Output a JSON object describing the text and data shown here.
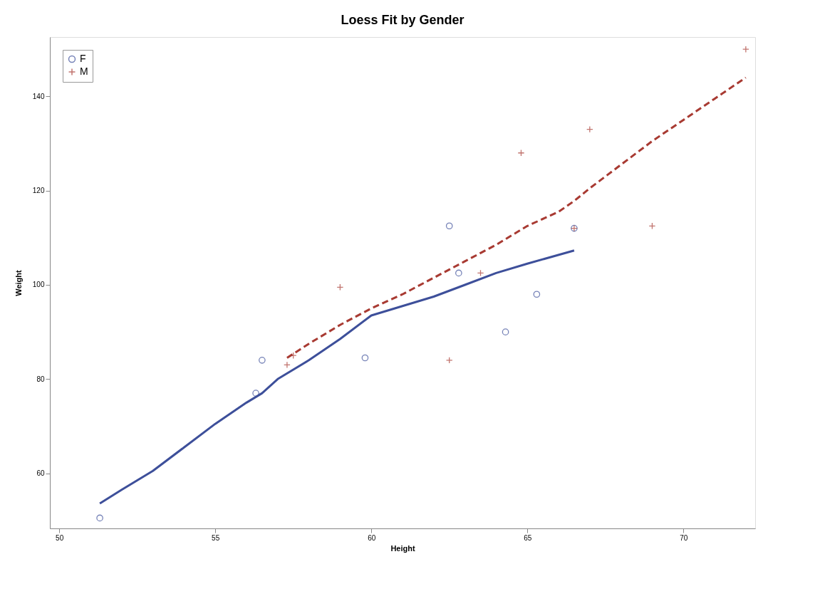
{
  "chart_data": {
    "type": "scatter",
    "title": "Loess Fit by Gender",
    "xlabel": "Height",
    "ylabel": "Weight",
    "xlim": [
      49.7,
      72.3
    ],
    "xticks": [
      50,
      55,
      60,
      65,
      70
    ],
    "ylim": [
      48.3,
      152.6
    ],
    "yticks": [
      60,
      80,
      100,
      120,
      140
    ],
    "grid": false,
    "legend": "top left",
    "series": [
      {
        "name": "F",
        "marker": "circle",
        "color": "#3d4f9a",
        "x": [
          56.5,
          65.3,
          62.8,
          59.8,
          62.5,
          51.3,
          64.3,
          56.3,
          66.5
        ],
        "values": [
          84,
          98,
          102.5,
          84.5,
          112.5,
          50.5,
          90,
          77,
          112
        ]
      },
      {
        "name": "M",
        "marker": "cross",
        "color": "#a83a32",
        "x": [
          69,
          63.5,
          57.3,
          62.5,
          59,
          72,
          64.8,
          67,
          57.5,
          66.5
        ],
        "values": [
          112.5,
          102.5,
          83,
          84,
          99.5,
          150,
          128,
          133,
          85,
          112
        ]
      },
      {
        "type": "line",
        "line_style": "solid",
        "color": "#3d4f9a",
        "x": [
          51.3,
          52,
          53,
          54,
          55,
          56,
          56.5,
          57,
          58,
          59,
          60,
          61,
          62,
          63,
          64,
          65,
          66.5
        ],
        "values": [
          53.6,
          56.5,
          60.5,
          65.5,
          70.5,
          75,
          77,
          80,
          84,
          88.5,
          93.5,
          95.5,
          97.5,
          100,
          102.5,
          104.5,
          107.3
        ]
      },
      {
        "type": "line",
        "line_style": "dashed",
        "color": "#a83a32",
        "x": [
          57.3,
          58,
          59,
          60,
          61,
          62,
          63,
          64,
          65,
          66,
          66.5,
          67,
          68,
          69,
          70,
          71,
          72
        ],
        "values": [
          84.5,
          87.5,
          91.5,
          95,
          98,
          101.5,
          105,
          108.5,
          112.5,
          115.5,
          117.8,
          120.5,
          125.5,
          130.5,
          135,
          139.5,
          144
        ]
      }
    ]
  }
}
